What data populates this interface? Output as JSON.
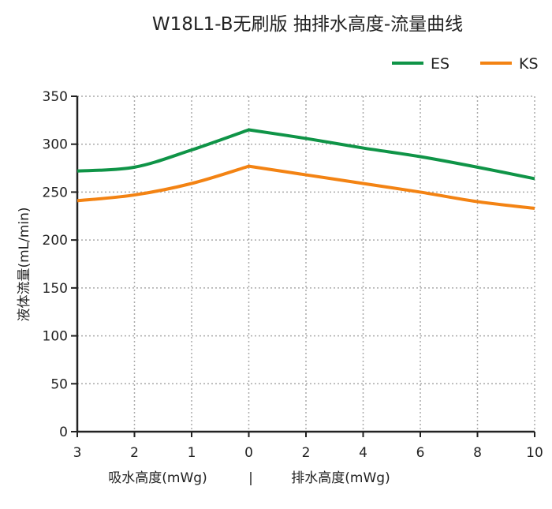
{
  "chart_data": {
    "type": "line",
    "title": "W18L1-B无刷版 抽排水高度-流量曲线",
    "ylabel": "液体流量(mL/min)",
    "xlabel_left": "吸水高度(mWg)",
    "xlabel_separator": "|",
    "xlabel_right": "排水高度(mWg)",
    "categories": [
      "3",
      "2",
      "1",
      "0",
      "2",
      "4",
      "6",
      "8",
      "10"
    ],
    "ylim": [
      0,
      350
    ],
    "yticks": [
      0,
      50,
      100,
      150,
      200,
      250,
      300,
      350
    ],
    "grid": true,
    "legend_position": "top-right",
    "series": [
      {
        "name": "ES",
        "color": "#0f9447",
        "values": [
          272,
          276,
          294,
          315,
          306,
          296,
          287,
          276,
          264
        ]
      },
      {
        "name": "KS",
        "color": "#f38313",
        "values": [
          241,
          247,
          259,
          277,
          268,
          259,
          250,
          240,
          233
        ]
      }
    ]
  }
}
